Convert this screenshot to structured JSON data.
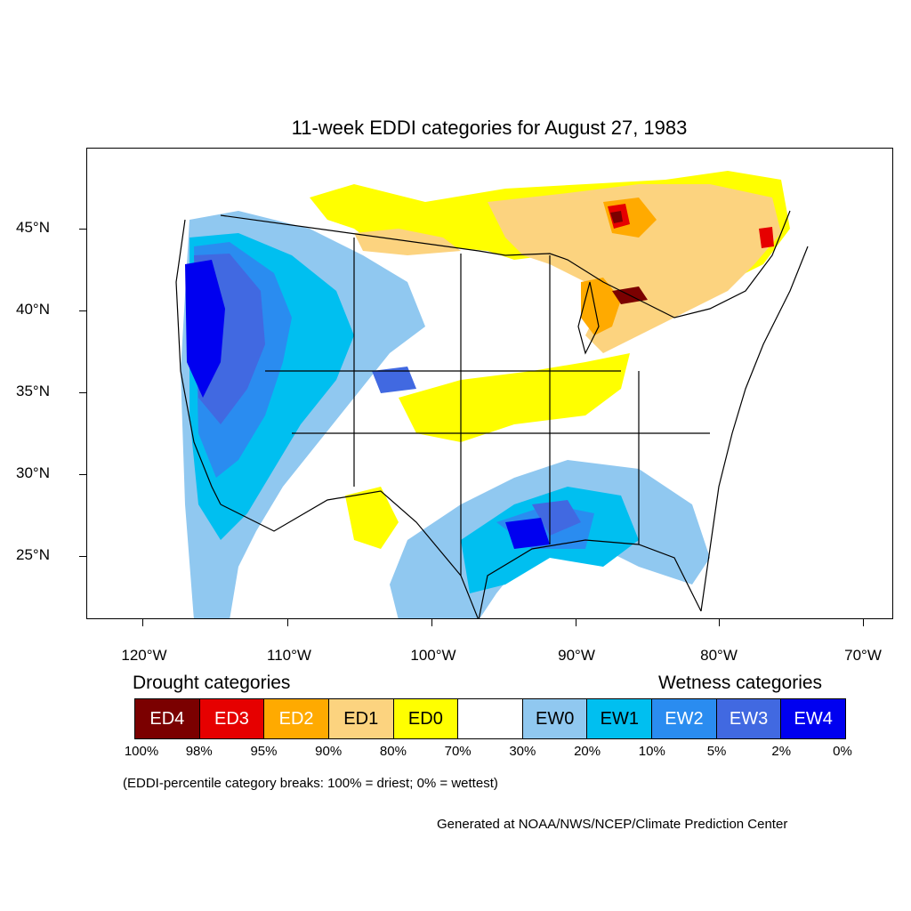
{
  "title": "11-week EDDI categories for August 27, 1983",
  "lat_labels": [
    "45°N",
    "40°N",
    "35°N",
    "30°N",
    "25°N"
  ],
  "lon_labels": [
    "120°W",
    "110°W",
    "100°W",
    "90°W",
    "80°W",
    "70°W"
  ],
  "legend": {
    "drought_heading": "Drought categories",
    "wetness_heading": "Wetness categories",
    "categories": [
      {
        "label": "ED4",
        "color": "#7b0000",
        "text_color": "#ffffff"
      },
      {
        "label": "ED3",
        "color": "#e60000",
        "text_color": "#ffffff"
      },
      {
        "label": "ED2",
        "color": "#ffaa00",
        "text_color": "#ffffff"
      },
      {
        "label": "ED1",
        "color": "#fcd37f",
        "text_color": "#000000"
      },
      {
        "label": "ED0",
        "color": "#ffff00",
        "text_color": "#000000"
      },
      {
        "label": "",
        "color": "#ffffff",
        "text_color": "#000000"
      },
      {
        "label": "EW0",
        "color": "#90c8f0",
        "text_color": "#000000"
      },
      {
        "label": "EW1",
        "color": "#00bff0",
        "text_color": "#000000"
      },
      {
        "label": "EW2",
        "color": "#2a8cf0",
        "text_color": "#ffffff"
      },
      {
        "label": "EW3",
        "color": "#4169e1",
        "text_color": "#ffffff"
      },
      {
        "label": "EW4",
        "color": "#0000f0",
        "text_color": "#ffffff"
      }
    ],
    "breaks": [
      "100%",
      "98%",
      "95%",
      "90%",
      "80%",
      "70%",
      "30%",
      "20%",
      "10%",
      "5%",
      "2%",
      "0%"
    ]
  },
  "note": "(EDDI-percentile category breaks: 100% = driest; 0% = wettest)",
  "credit": "Generated at NOAA/NWS/NCEP/Climate Prediction Center"
}
